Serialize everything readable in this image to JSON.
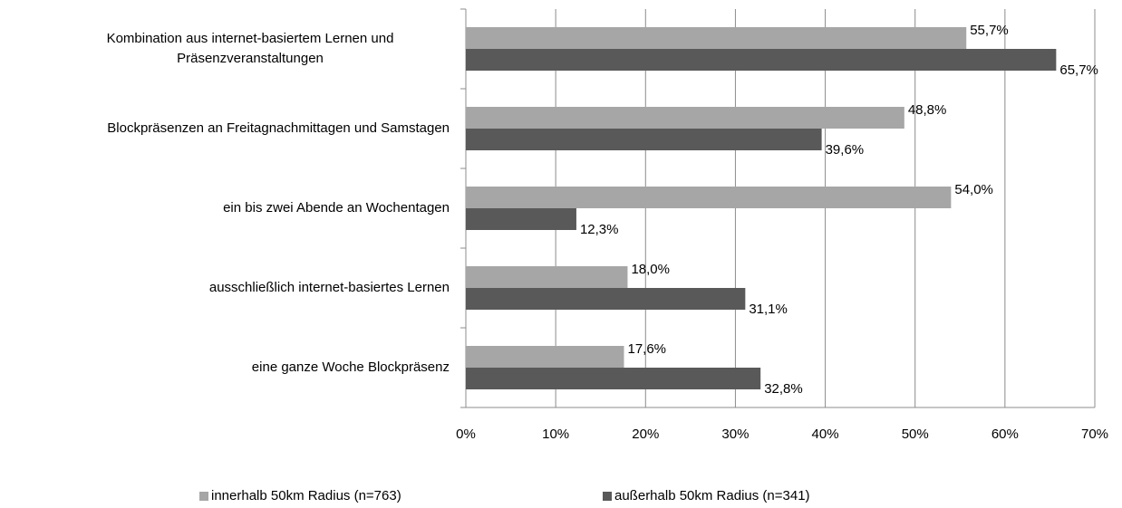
{
  "chart_data": {
    "type": "bar",
    "orientation": "horizontal",
    "categories": [
      "Kombination aus internet-basiertem Lernen und Präsenzveranstaltungen",
      "Blockpräsenzen an Freitagnachmittagen und Samstagen",
      "ein bis zwei Abende an Wochentagen",
      "ausschließlich internet-basiertes Lernen",
      "eine ganze Woche Blockpräsenz"
    ],
    "series": [
      {
        "name": "innerhalb 50km Radius (n=763)",
        "color": "#a6a6a6",
        "values": [
          55.7,
          48.8,
          54.0,
          18.0,
          17.6
        ],
        "value_labels": [
          "55,7%",
          "48,8%",
          "54,0%",
          "18,0%",
          "17,6%"
        ]
      },
      {
        "name": "außerhalb 50km Radius (n=341)",
        "color": "#595959",
        "values": [
          65.7,
          39.6,
          12.3,
          31.1,
          32.8
        ],
        "value_labels": [
          "65,7%",
          "39,6%",
          "12,3%",
          "31,1%",
          "32,8%"
        ]
      }
    ],
    "xlim": [
      0,
      70
    ],
    "xticks": [
      {
        "value": 0,
        "label": "0%"
      },
      {
        "value": 10,
        "label": "10%"
      },
      {
        "value": 20,
        "label": "20%"
      },
      {
        "value": 30,
        "label": "30%"
      },
      {
        "value": 40,
        "label": "40%"
      },
      {
        "value": 50,
        "label": "50%"
      },
      {
        "value": 60,
        "label": "60%"
      },
      {
        "value": 70,
        "label": "70%"
      }
    ],
    "grid": true,
    "legend": "bottom"
  }
}
